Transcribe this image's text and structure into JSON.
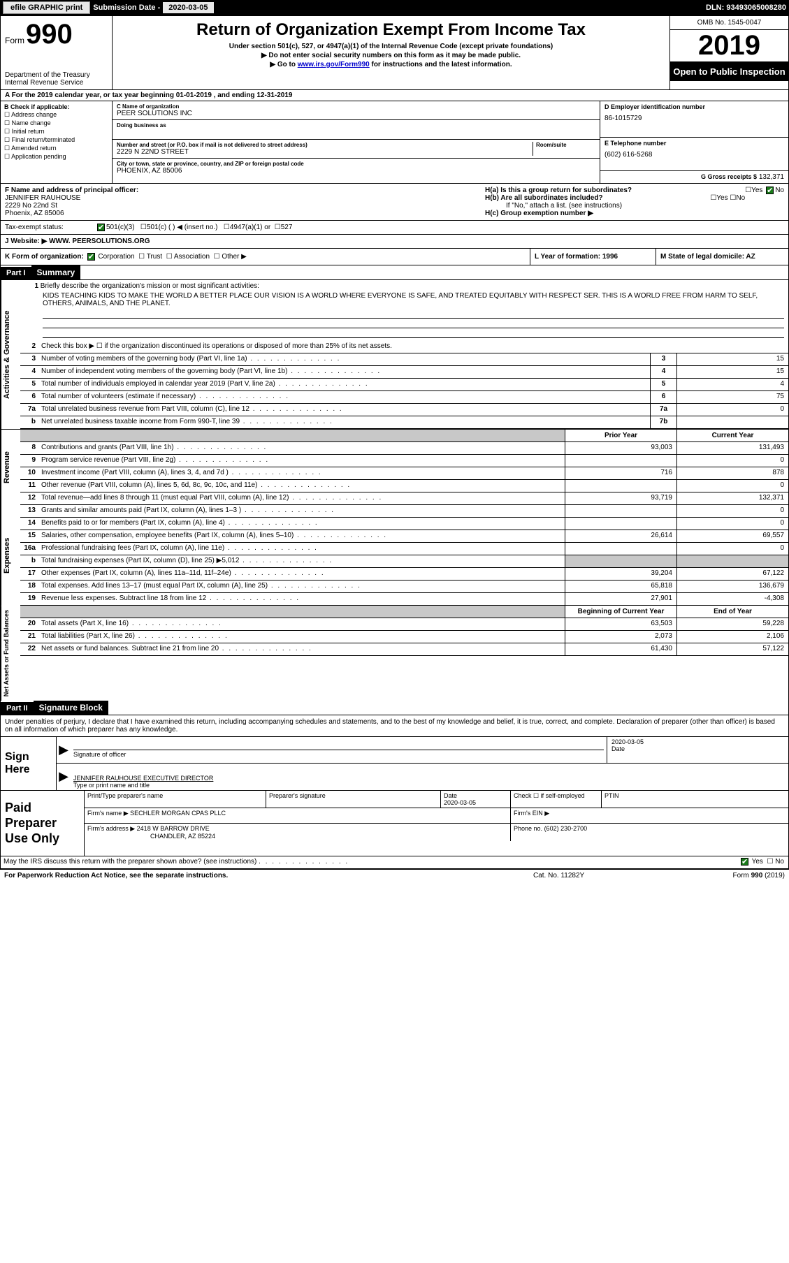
{
  "topbar": {
    "efile": "efile GRAPHIC print",
    "sub_label": "Submission Date - 2020-03-05",
    "dln": "DLN: 93493065008280"
  },
  "header": {
    "form_word": "Form",
    "form_num": "990",
    "dept": "Department of the Treasury\nInternal Revenue Service",
    "title": "Return of Organization Exempt From Income Tax",
    "sub1": "Under section 501(c), 527, or 4947(a)(1) of the Internal Revenue Code (except private foundations)",
    "sub2": "Do not enter social security numbers on this form as it may be made public.",
    "sub3_pre": "Go to ",
    "sub3_link": "www.irs.gov/Form990",
    "sub3_post": " for instructions and the latest information.",
    "omb": "OMB No. 1545-0047",
    "year": "2019",
    "open": "Open to Public Inspection"
  },
  "period": "A For the 2019 calendar year, or tax year beginning 01-01-2019    , and ending 12-31-2019",
  "B": {
    "title": "B Check if applicable:",
    "items": [
      "Address change",
      "Name change",
      "Initial return",
      "Final return/terminated",
      "Amended return",
      "Application pending"
    ]
  },
  "C": {
    "name_lbl": "C Name of organization",
    "name": "PEER SOLUTIONS INC",
    "dba_lbl": "Doing business as",
    "addr_lbl": "Number and street (or P.O. box if mail is not delivered to street address)",
    "room_lbl": "Room/suite",
    "addr": "2229 N 22ND STREET",
    "city_lbl": "City or town, state or province, country, and ZIP or foreign postal code",
    "city": "PHOENIX, AZ  85006"
  },
  "D": {
    "lbl": "D Employer identification number",
    "val": "86-1015729"
  },
  "E": {
    "lbl": "E Telephone number",
    "val": "(602) 616-5268"
  },
  "G": {
    "lbl": "G Gross receipts $",
    "val": "132,371"
  },
  "F": {
    "lbl": "F  Name and address of principal officer:",
    "name": "JENNIFER RAUHOUSE",
    "addr1": "2229 No 22nd St",
    "addr2": "Phoenix, AZ  85006"
  },
  "H": {
    "a": "H(a)  Is this a group return for subordinates?",
    "b": "H(b)  Are all subordinates included?",
    "b_note": "If \"No,\" attach a list. (see instructions)",
    "c": "H(c)  Group exemption number ▶"
  },
  "tax_status": {
    "lbl": "Tax-exempt status:",
    "opts": [
      "501(c)(3)",
      "501(c) (   ) ◀ (insert no.)",
      "4947(a)(1) or",
      "527"
    ]
  },
  "J": {
    "lbl": "J    Website: ▶",
    "val": "WWW. PEERSOLUTIONS.ORG"
  },
  "K": {
    "lbl": "K Form of organization:",
    "opts": [
      "Corporation",
      "Trust",
      "Association",
      "Other ▶"
    ],
    "L": "L Year of formation: 1996",
    "M": "M State of legal domicile: AZ"
  },
  "part1": {
    "num": "Part I",
    "title": "Summary"
  },
  "briefly": {
    "num": "1",
    "text": "Briefly describe the organization's mission or most significant activities:",
    "mission": "KIDS TEACHING KIDS TO MAKE THE WORLD A BETTER PLACE OUR VISION IS A WORLD WHERE EVERYONE IS SAFE, AND TREATED EQUITABLY WITH RESPECT SER. THIS IS A WORLD FREE FROM HARM TO SELF, OTHERS, ANIMALS, AND THE PLANET."
  },
  "gov_lines": [
    {
      "n": "2",
      "d": "Check this box ▶ ☐  if the organization discontinued its operations or disposed of more than 25% of its net assets.",
      "box": "",
      "v": ""
    },
    {
      "n": "3",
      "d": "Number of voting members of the governing body (Part VI, line 1a)",
      "box": "3",
      "v": "15"
    },
    {
      "n": "4",
      "d": "Number of independent voting members of the governing body (Part VI, line 1b)",
      "box": "4",
      "v": "15"
    },
    {
      "n": "5",
      "d": "Total number of individuals employed in calendar year 2019 (Part V, line 2a)",
      "box": "5",
      "v": "4"
    },
    {
      "n": "6",
      "d": "Total number of volunteers (estimate if necessary)",
      "box": "6",
      "v": "75"
    },
    {
      "n": "7a",
      "d": "Total unrelated business revenue from Part VIII, column (C), line 12",
      "box": "7a",
      "v": "0"
    },
    {
      "n": "b",
      "d": "Net unrelated business taxable income from Form 990-T, line 39",
      "box": "7b",
      "v": ""
    }
  ],
  "col_hdrs": {
    "prior": "Prior Year",
    "current": "Current Year"
  },
  "rev_lines": [
    {
      "n": "8",
      "d": "Contributions and grants (Part VIII, line 1h)",
      "p": "93,003",
      "c": "131,493"
    },
    {
      "n": "9",
      "d": "Program service revenue (Part VIII, line 2g)",
      "p": "",
      "c": "0"
    },
    {
      "n": "10",
      "d": "Investment income (Part VIII, column (A), lines 3, 4, and 7d )",
      "p": "716",
      "c": "878"
    },
    {
      "n": "11",
      "d": "Other revenue (Part VIII, column (A), lines 5, 6d, 8c, 9c, 10c, and 11e)",
      "p": "",
      "c": "0"
    },
    {
      "n": "12",
      "d": "Total revenue—add lines 8 through 11 (must equal Part VIII, column (A), line 12)",
      "p": "93,719",
      "c": "132,371"
    }
  ],
  "exp_lines": [
    {
      "n": "13",
      "d": "Grants and similar amounts paid (Part IX, column (A), lines 1–3 )",
      "p": "",
      "c": "0"
    },
    {
      "n": "14",
      "d": "Benefits paid to or for members (Part IX, column (A), line 4)",
      "p": "",
      "c": "0"
    },
    {
      "n": "15",
      "d": "Salaries, other compensation, employee benefits (Part IX, column (A), lines 5–10)",
      "p": "26,614",
      "c": "69,557"
    },
    {
      "n": "16a",
      "d": "Professional fundraising fees (Part IX, column (A), line 11e)",
      "p": "",
      "c": "0"
    },
    {
      "n": "b",
      "d": "Total fundraising expenses (Part IX, column (D), line 25) ▶5,012",
      "p": "GREY",
      "c": "GREY"
    },
    {
      "n": "17",
      "d": "Other expenses (Part IX, column (A), lines 11a–11d, 11f–24e)",
      "p": "39,204",
      "c": "67,122"
    },
    {
      "n": "18",
      "d": "Total expenses. Add lines 13–17 (must equal Part IX, column (A), line 25)",
      "p": "65,818",
      "c": "136,679"
    },
    {
      "n": "19",
      "d": "Revenue less expenses. Subtract line 18 from line 12",
      "p": "27,901",
      "c": "-4,308"
    }
  ],
  "net_hdrs": {
    "b": "Beginning of Current Year",
    "e": "End of Year"
  },
  "net_lines": [
    {
      "n": "20",
      "d": "Total assets (Part X, line 16)",
      "p": "63,503",
      "c": "59,228"
    },
    {
      "n": "21",
      "d": "Total liabilities (Part X, line 26)",
      "p": "2,073",
      "c": "2,106"
    },
    {
      "n": "22",
      "d": "Net assets or fund balances. Subtract line 21 from line 20",
      "p": "61,430",
      "c": "57,122"
    }
  ],
  "vtabs": {
    "gov": "Activities & Governance",
    "rev": "Revenue",
    "exp": "Expenses",
    "net": "Net Assets or Fund Balances"
  },
  "part2": {
    "num": "Part II",
    "title": "Signature Block",
    "decl": "Under penalties of perjury, I declare that I have examined this return, including accompanying schedules and statements, and to the best of my knowledge and belief, it is true, correct, and complete. Declaration of preparer (other than officer) is based on all information of which preparer has any knowledge."
  },
  "sign": {
    "left": "Sign Here",
    "sig_lbl": "Signature of officer",
    "date": "2020-03-05",
    "date_lbl": "Date",
    "name": "JENNIFER RAUHOUSE  EXECUTIVE DIRECTOR",
    "name_lbl": "Type or print name and title"
  },
  "prep": {
    "left": "Paid Preparer Use Only",
    "h1": "Print/Type preparer's name",
    "h2": "Preparer's signature",
    "h3": "Date",
    "date": "2020-03-05",
    "h4": "Check ☐ if self-employed",
    "h5": "PTIN",
    "firm_lbl": "Firm's name    ▶",
    "firm": "SECHLER MORGAN CPAS PLLC",
    "ein_lbl": "Firm's EIN ▶",
    "addr_lbl": "Firm's address ▶",
    "addr1": "2418 W BARROW DRIVE",
    "addr2": "CHANDLER, AZ  85224",
    "phone_lbl": "Phone no.",
    "phone": "(602) 230-2700"
  },
  "discuss": "May the IRS discuss this return with the preparer shown above? (see instructions)",
  "footer": {
    "l": "For Paperwork Reduction Act Notice, see the separate instructions.",
    "m": "Cat. No. 11282Y",
    "r": "Form 990 (2019)"
  }
}
